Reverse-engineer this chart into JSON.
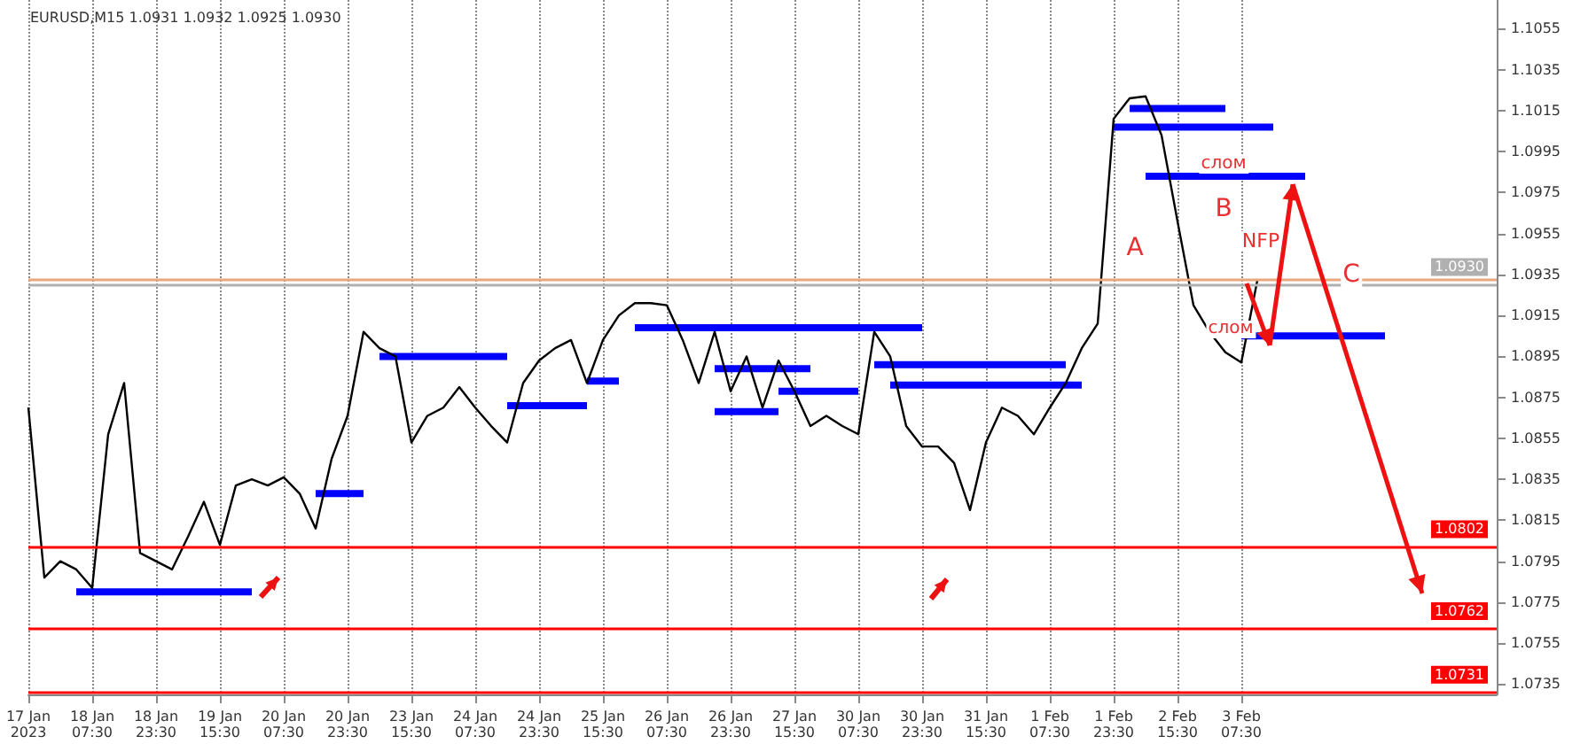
{
  "chart_data": {
    "type": "line",
    "title": "EURUSD,M15 1.0931 1.0932 1.0925 1.0930",
    "categories": [
      "17 Jan 2023",
      null,
      null,
      null,
      "18 Jan 07:30",
      null,
      null,
      null,
      "18 Jan 23:30",
      null,
      null,
      null,
      "19 Jan 15:30",
      null,
      null,
      null,
      "20 Jan 07:30",
      null,
      null,
      null,
      "20 Jan 23:30",
      null,
      null,
      null,
      "23 Jan 15:30",
      null,
      null,
      null,
      "24 Jan 07:30",
      null,
      null,
      null,
      "24 Jan 23:30",
      null,
      null,
      null,
      "25 Jan 15:30",
      null,
      null,
      null,
      "26 Jan 07:30",
      null,
      null,
      null,
      "26 Jan 23:30",
      null,
      null,
      null,
      "27 Jan 15:30",
      null,
      null,
      null,
      "30 Jan 07:30",
      null,
      null,
      null,
      "30 Jan 23:30",
      null,
      null,
      null,
      "31 Jan 15:30",
      null,
      null,
      null,
      "1 Feb 07:30",
      null,
      null,
      null,
      "1 Feb 23:30",
      null,
      null,
      null,
      "2 Feb 15:30",
      null,
      null,
      null,
      "3 Feb 07:30",
      null,
      null,
      null,
      null,
      null,
      null,
      null,
      null,
      null,
      null,
      null,
      null,
      null,
      null,
      null,
      null
    ],
    "series": [
      {
        "color": "#000000",
        "values": [
          1.087,
          1.0787,
          1.0795,
          1.0791,
          1.0782,
          1.0857,
          1.0882,
          1.0799,
          1.0795,
          1.0791,
          1.0807,
          1.0824,
          1.0803,
          1.0832,
          1.0835,
          1.0832,
          1.0836,
          1.0828,
          1.0811,
          1.0845,
          1.0866,
          1.0907,
          1.0899,
          1.0895,
          1.0853,
          1.0866,
          1.087,
          1.088,
          1.087,
          1.0861,
          1.0853,
          1.0882,
          1.0893,
          1.0899,
          1.0903,
          1.0882,
          1.0903,
          1.0915,
          1.0921,
          1.0921,
          1.092,
          1.0903,
          1.0882,
          1.0907,
          1.0878,
          1.0895,
          1.087,
          1.0893,
          1.0878,
          1.0861,
          1.0866,
          1.0861,
          1.0857,
          1.0907,
          1.0895,
          1.0861,
          1.0851,
          1.0851,
          1.0843,
          1.082,
          1.0853,
          1.087,
          1.0866,
          1.0857,
          1.087,
          1.0882,
          1.0899,
          1.0911,
          1.1011,
          1.1021,
          1.1022,
          1.1003,
          1.0961,
          1.092,
          1.0907,
          1.0897,
          1.0892,
          1.0932,
          null,
          null,
          null,
          null,
          null,
          null,
          null,
          null,
          null,
          null,
          null,
          null,
          null,
          null,
          null
        ]
      },
      {
        "color": "#0000ff",
        "values": [
          null,
          null,
          null,
          1.078,
          1.078,
          1.078,
          1.078,
          1.078,
          1.078,
          1.078,
          1.078,
          1.078,
          1.078,
          1.078,
          1.078,
          null,
          null,
          null,
          null,
          null,
          null,
          null,
          null,
          null,
          null,
          null,
          null,
          null,
          null,
          null,
          null,
          null,
          null,
          null,
          null,
          null,
          null,
          null,
          null,
          null,
          null,
          null,
          null,
          null,
          null,
          null,
          null,
          null,
          null,
          null,
          null,
          null,
          null,
          null,
          null,
          null,
          null,
          null,
          null,
          null,
          null,
          null,
          null,
          null,
          null,
          null,
          null,
          null,
          null,
          null,
          null,
          null,
          null,
          null,
          null,
          null,
          null,
          null,
          null,
          null,
          null,
          null,
          null,
          null,
          null,
          null,
          null,
          null,
          null,
          null,
          null,
          null,
          null
        ]
      },
      {
        "color": "#0000fe",
        "values": [
          null,
          null,
          null,
          null,
          null,
          null,
          null,
          null,
          null,
          null,
          null,
          null,
          null,
          null,
          null,
          null,
          null,
          null,
          1.0828,
          1.0828,
          1.0828,
          1.0828,
          null,
          null,
          null,
          null,
          null,
          null,
          null,
          null,
          null,
          null,
          null,
          null,
          null,
          null,
          null,
          null,
          null,
          null,
          null,
          null,
          null,
          null,
          null,
          null,
          null,
          null,
          null,
          null,
          null,
          null,
          null,
          null,
          null,
          null,
          null,
          null,
          null,
          null,
          null,
          null,
          null,
          null,
          null,
          null,
          null,
          null,
          null,
          null,
          null,
          null,
          null,
          null,
          null,
          null,
          null,
          null,
          null,
          null,
          null,
          null,
          null,
          null,
          null,
          null,
          null,
          null,
          null,
          null,
          null,
          null,
          null
        ]
      },
      {
        "color": "#0000fd",
        "values": [
          null,
          null,
          null,
          null,
          null,
          null,
          null,
          null,
          null,
          null,
          null,
          null,
          null,
          null,
          null,
          null,
          null,
          null,
          null,
          null,
          null,
          null,
          1.0895,
          1.0895,
          1.0895,
          1.0895,
          1.0895,
          1.0895,
          1.0895,
          1.0895,
          1.0895,
          null,
          null,
          null,
          null,
          null,
          null,
          null,
          null,
          null,
          null,
          null,
          null,
          null,
          null,
          null,
          null,
          null,
          null,
          null,
          null,
          null,
          null,
          null,
          null,
          null,
          null,
          null,
          null,
          null,
          null,
          null,
          null,
          null,
          null,
          null,
          null,
          null,
          null,
          null,
          null,
          null,
          null,
          null,
          null,
          null,
          null,
          null,
          null,
          null,
          null,
          null,
          null,
          null,
          null,
          null,
          null,
          null,
          null,
          null,
          null,
          null,
          null
        ]
      },
      {
        "color": "#0101ff",
        "values": [
          null,
          null,
          null,
          null,
          null,
          null,
          null,
          null,
          null,
          null,
          null,
          null,
          null,
          null,
          null,
          null,
          null,
          null,
          null,
          null,
          null,
          null,
          null,
          null,
          null,
          null,
          null,
          null,
          null,
          null,
          1.0871,
          1.0871,
          1.0871,
          1.0871,
          1.0871,
          1.0871,
          null,
          null,
          null,
          null,
          null,
          null,
          null,
          null,
          null,
          null,
          null,
          null,
          null,
          null,
          null,
          null,
          null,
          null,
          null,
          null,
          null,
          null,
          null,
          null,
          null,
          null,
          null,
          null,
          null,
          null,
          null,
          null,
          null,
          null,
          null,
          null,
          null,
          null,
          null,
          null,
          null,
          null,
          null,
          null,
          null,
          null,
          null,
          null,
          null,
          null,
          null,
          null,
          null,
          null,
          null,
          null,
          null
        ]
      },
      {
        "color": "#0202ff",
        "values": [
          null,
          null,
          null,
          null,
          null,
          null,
          null,
          null,
          null,
          null,
          null,
          null,
          null,
          null,
          null,
          null,
          null,
          null,
          null,
          null,
          null,
          null,
          null,
          null,
          null,
          null,
          null,
          null,
          null,
          null,
          null,
          null,
          null,
          null,
          null,
          1.0883,
          1.0883,
          1.0883,
          null,
          null,
          null,
          null,
          null,
          null,
          null,
          null,
          null,
          null,
          null,
          null,
          null,
          null,
          null,
          null,
          null,
          null,
          null,
          null,
          null,
          null,
          null,
          null,
          null,
          null,
          null,
          null,
          null,
          null,
          null,
          null,
          null,
          null,
          null,
          null,
          null,
          null,
          null,
          null,
          null,
          null,
          null,
          null,
          null,
          null,
          null,
          null,
          null,
          null,
          null,
          null,
          null,
          null,
          null
        ]
      },
      {
        "color": "#0000fc",
        "values": [
          null,
          null,
          null,
          null,
          null,
          null,
          null,
          null,
          null,
          null,
          null,
          null,
          null,
          null,
          null,
          null,
          null,
          null,
          null,
          null,
          null,
          null,
          null,
          null,
          null,
          null,
          null,
          null,
          null,
          null,
          null,
          null,
          null,
          null,
          null,
          null,
          null,
          null,
          1.0909,
          1.0909,
          1.0909,
          1.0909,
          1.0909,
          1.0909,
          1.0909,
          1.0909,
          1.0909,
          1.0909,
          1.0909,
          1.0909,
          1.0909,
          1.0909,
          1.0909,
          1.0909,
          1.0909,
          1.0909,
          1.0909,
          null,
          null,
          null,
          null,
          null,
          null,
          null,
          null,
          null,
          null,
          null,
          null,
          null,
          null,
          null,
          null,
          null,
          null,
          null,
          null,
          null,
          null,
          null,
          null,
          null,
          null,
          null,
          null,
          null,
          null,
          null,
          null,
          null,
          null,
          null,
          null
        ]
      },
      {
        "color": "#0101fe",
        "values": [
          null,
          null,
          null,
          null,
          null,
          null,
          null,
          null,
          null,
          null,
          null,
          null,
          null,
          null,
          null,
          null,
          null,
          null,
          null,
          null,
          null,
          null,
          null,
          null,
          null,
          null,
          null,
          null,
          null,
          null,
          null,
          null,
          null,
          null,
          null,
          null,
          null,
          null,
          null,
          null,
          null,
          null,
          null,
          1.0889,
          1.0889,
          1.0889,
          1.0889,
          1.0889,
          1.0889,
          1.0889,
          null,
          null,
          null,
          null,
          null,
          null,
          null,
          null,
          null,
          null,
          null,
          null,
          null,
          null,
          null,
          null,
          null,
          null,
          null,
          null,
          null,
          null,
          null,
          null,
          null,
          null,
          null,
          null,
          null,
          null,
          null,
          null,
          null,
          null,
          null,
          null,
          null,
          null,
          null,
          null,
          null,
          null,
          null
        ]
      },
      {
        "color": "#0202fe",
        "values": [
          null,
          null,
          null,
          null,
          null,
          null,
          null,
          null,
          null,
          null,
          null,
          null,
          null,
          null,
          null,
          null,
          null,
          null,
          null,
          null,
          null,
          null,
          null,
          null,
          null,
          null,
          null,
          null,
          null,
          null,
          null,
          null,
          null,
          null,
          null,
          null,
          null,
          null,
          null,
          null,
          null,
          null,
          null,
          1.0868,
          1.0868,
          1.0868,
          1.0868,
          1.0868,
          null,
          null,
          null,
          null,
          null,
          null,
          null,
          null,
          null,
          null,
          null,
          null,
          null,
          null,
          null,
          null,
          null,
          null,
          null,
          null,
          null,
          null,
          null,
          null,
          null,
          null,
          null,
          null,
          null,
          null,
          null,
          null,
          null,
          null,
          null,
          null,
          null,
          null,
          null,
          null,
          null,
          null,
          null,
          null,
          null
        ]
      },
      {
        "color": "#0303ff",
        "values": [
          null,
          null,
          null,
          null,
          null,
          null,
          null,
          null,
          null,
          null,
          null,
          null,
          null,
          null,
          null,
          null,
          null,
          null,
          null,
          null,
          null,
          null,
          null,
          null,
          null,
          null,
          null,
          null,
          null,
          null,
          null,
          null,
          null,
          null,
          null,
          null,
          null,
          null,
          null,
          null,
          null,
          null,
          null,
          null,
          null,
          null,
          null,
          1.0878,
          1.0878,
          1.0878,
          1.0878,
          1.0878,
          1.0878,
          null,
          null,
          null,
          null,
          null,
          null,
          null,
          null,
          null,
          null,
          null,
          null,
          null,
          null,
          null,
          null,
          null,
          null,
          null,
          null,
          null,
          null,
          null,
          null,
          null,
          null,
          null,
          null,
          null,
          null,
          null,
          null,
          null,
          null,
          null,
          null,
          null,
          null,
          null,
          null
        ]
      },
      {
        "color": "#0000fb",
        "values": [
          null,
          null,
          null,
          null,
          null,
          null,
          null,
          null,
          null,
          null,
          null,
          null,
          null,
          null,
          null,
          null,
          null,
          null,
          null,
          null,
          null,
          null,
          null,
          null,
          null,
          null,
          null,
          null,
          null,
          null,
          null,
          null,
          null,
          null,
          null,
          null,
          null,
          null,
          null,
          null,
          null,
          null,
          null,
          null,
          null,
          null,
          null,
          null,
          null,
          null,
          null,
          null,
          null,
          1.0891,
          1.0891,
          1.0891,
          1.0891,
          1.0891,
          1.0891,
          1.0891,
          1.0891,
          1.0891,
          1.0891,
          1.0891,
          1.0891,
          1.0891,
          null,
          null,
          null,
          null,
          null,
          null,
          null,
          null,
          null,
          null,
          null,
          null,
          null,
          null,
          null,
          null,
          null,
          null,
          null,
          null,
          null,
          null,
          null,
          null,
          null,
          null,
          null
        ]
      },
      {
        "color": "#0303fe",
        "values": [
          null,
          null,
          null,
          null,
          null,
          null,
          null,
          null,
          null,
          null,
          null,
          null,
          null,
          null,
          null,
          null,
          null,
          null,
          null,
          null,
          null,
          null,
          null,
          null,
          null,
          null,
          null,
          null,
          null,
          null,
          null,
          null,
          null,
          null,
          null,
          null,
          null,
          null,
          null,
          null,
          null,
          null,
          null,
          null,
          null,
          null,
          null,
          null,
          null,
          null,
          null,
          null,
          null,
          null,
          1.0881,
          1.0881,
          1.0881,
          1.0881,
          1.0881,
          1.0881,
          1.0881,
          1.0881,
          1.0881,
          1.0881,
          1.0881,
          1.0881,
          1.0881,
          null,
          null,
          null,
          null,
          null,
          null,
          null,
          null,
          null,
          null,
          null,
          null,
          null,
          null,
          null,
          null,
          null,
          null,
          null,
          null,
          null,
          null,
          null,
          null,
          null,
          null
        ]
      },
      {
        "color": "#0000fa",
        "values": [
          null,
          null,
          null,
          null,
          null,
          null,
          null,
          null,
          null,
          null,
          null,
          null,
          null,
          null,
          null,
          null,
          null,
          null,
          null,
          null,
          null,
          null,
          null,
          null,
          null,
          null,
          null,
          null,
          null,
          null,
          null,
          null,
          null,
          null,
          null,
          null,
          null,
          null,
          null,
          null,
          null,
          null,
          null,
          null,
          null,
          null,
          null,
          null,
          null,
          null,
          null,
          null,
          null,
          null,
          null,
          null,
          null,
          null,
          null,
          null,
          null,
          null,
          null,
          null,
          null,
          null,
          null,
          null,
          null,
          1.1016,
          1.1016,
          1.1016,
          1.1016,
          1.1016,
          1.1016,
          1.1016,
          null,
          null,
          null,
          null,
          null,
          null,
          null,
          null,
          null,
          null,
          null,
          null,
          null,
          null,
          null,
          null,
          null
        ]
      },
      {
        "color": "#0404ff",
        "values": [
          null,
          null,
          null,
          null,
          null,
          null,
          null,
          null,
          null,
          null,
          null,
          null,
          null,
          null,
          null,
          null,
          null,
          null,
          null,
          null,
          null,
          null,
          null,
          null,
          null,
          null,
          null,
          null,
          null,
          null,
          null,
          null,
          null,
          null,
          null,
          null,
          null,
          null,
          null,
          null,
          null,
          null,
          null,
          null,
          null,
          null,
          null,
          null,
          null,
          null,
          null,
          null,
          null,
          null,
          null,
          null,
          null,
          null,
          null,
          null,
          null,
          null,
          null,
          null,
          null,
          null,
          null,
          null,
          1.1007,
          1.1007,
          1.1007,
          1.1007,
          1.1007,
          1.1007,
          1.1007,
          1.1007,
          1.1007,
          1.1007,
          1.1007,
          null,
          null,
          null,
          null,
          null,
          null,
          null,
          null,
          null,
          null,
          null,
          null,
          null,
          null
        ]
      },
      {
        "color": "#0101fd",
        "values": [
          null,
          null,
          null,
          null,
          null,
          null,
          null,
          null,
          null,
          null,
          null,
          null,
          null,
          null,
          null,
          null,
          null,
          null,
          null,
          null,
          null,
          null,
          null,
          null,
          null,
          null,
          null,
          null,
          null,
          null,
          null,
          null,
          null,
          null,
          null,
          null,
          null,
          null,
          null,
          null,
          null,
          null,
          null,
          null,
          null,
          null,
          null,
          null,
          null,
          null,
          null,
          null,
          null,
          null,
          null,
          null,
          null,
          null,
          null,
          null,
          null,
          null,
          null,
          null,
          null,
          null,
          null,
          null,
          null,
          null,
          1.0983,
          1.0983,
          1.0983,
          1.0983,
          1.0983,
          1.0983,
          1.0983,
          1.0983,
          1.0983,
          1.0983,
          1.0983,
          null,
          null,
          null,
          null,
          null,
          null,
          null,
          null,
          null,
          null,
          null,
          null
        ]
      },
      {
        "color": "#0202fd",
        "values": [
          null,
          null,
          null,
          null,
          null,
          null,
          null,
          null,
          null,
          null,
          null,
          null,
          null,
          null,
          null,
          null,
          null,
          null,
          null,
          null,
          null,
          null,
          null,
          null,
          null,
          null,
          null,
          null,
          null,
          null,
          null,
          null,
          null,
          null,
          null,
          null,
          null,
          null,
          null,
          null,
          null,
          null,
          null,
          null,
          null,
          null,
          null,
          null,
          null,
          null,
          null,
          null,
          null,
          null,
          null,
          null,
          null,
          null,
          null,
          null,
          null,
          null,
          null,
          null,
          null,
          null,
          null,
          null,
          null,
          null,
          null,
          null,
          null,
          null,
          null,
          null,
          1.0905,
          1.0905,
          1.0905,
          1.0905,
          1.0905,
          1.0905,
          1.0905,
          1.0905,
          1.0905,
          1.0905,
          null,
          null,
          null,
          null,
          null,
          null,
          null
        ]
      }
    ],
    "ylim": [
      1.073,
      1.1069
    ],
    "yticks": [
      1.0735,
      1.0755,
      1.0775,
      1.0795,
      1.0815,
      1.0835,
      1.0855,
      1.0875,
      1.0895,
      1.0915,
      1.0935,
      1.0955,
      1.0975,
      1.0995,
      1.1015,
      1.1035,
      1.1055
    ],
    "ref_lines": [
      {
        "axis": "y",
        "value": 1.0802,
        "label": "1.0802",
        "color": "#ff0000"
      },
      {
        "axis": "y",
        "value": 1.0762,
        "label": "1.0762",
        "color": "#ff0000"
      },
      {
        "axis": "y",
        "value": 1.0731,
        "label": "1.0731",
        "color": "#ff0000"
      },
      {
        "axis": "y",
        "value": 1.0933,
        "color": "#e8a87c"
      },
      {
        "axis": "y",
        "value": 1.093,
        "label": "1.0930",
        "color": "#b0b0b0"
      }
    ],
    "annotations": [
      "слом",
      "B",
      "A",
      "NFP",
      "C",
      "слом"
    ],
    "grid": "x",
    "marker": "none",
    "line_style": "solid"
  }
}
